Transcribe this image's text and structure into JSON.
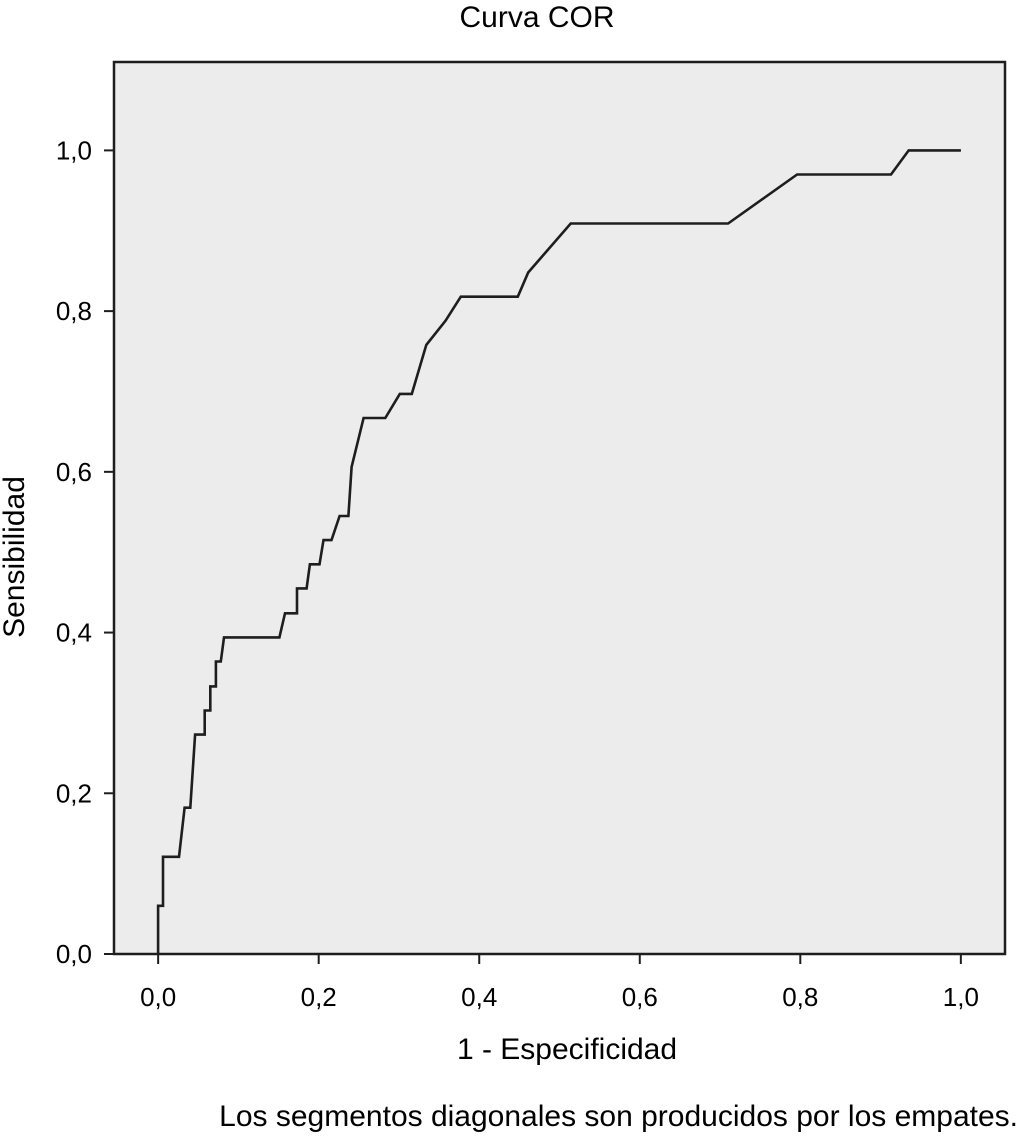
{
  "chart_data": {
    "type": "line",
    "title": "Curva COR",
    "xlabel": "1 - Especificidad",
    "ylabel": "Sensibilidad",
    "footnote": "Los segmentos diagonales son producidos por los empates.",
    "xlim": [
      -0.055,
      1.055
    ],
    "ylim": [
      0.0,
      1.11
    ],
    "x_ticks": [
      0.0,
      0.2,
      0.4,
      0.6,
      0.8,
      1.0
    ],
    "x_tick_labels": [
      "0,0",
      "0,2",
      "0,4",
      "0,6",
      "0,8",
      "1,0"
    ],
    "y_ticks": [
      0.0,
      0.2,
      0.4,
      0.6,
      0.8,
      1.0
    ],
    "y_tick_labels": [
      "0,0",
      "0,2",
      "0,4",
      "0,6",
      "0,8",
      "1,0"
    ],
    "grid": false,
    "colors": {
      "plot_background": "#ececec",
      "line": "#1e1e1e",
      "axes": "#1e1e1e"
    },
    "series": [
      {
        "points": [
          [
            0.0,
            0.0
          ],
          [
            0.0,
            0.06
          ],
          [
            0.006,
            0.06
          ],
          [
            0.006,
            0.121
          ],
          [
            0.026,
            0.121
          ],
          [
            0.033,
            0.182
          ],
          [
            0.04,
            0.182
          ],
          [
            0.046,
            0.273
          ],
          [
            0.058,
            0.273
          ],
          [
            0.058,
            0.303
          ],
          [
            0.065,
            0.303
          ],
          [
            0.065,
            0.333
          ],
          [
            0.072,
            0.333
          ],
          [
            0.072,
            0.364
          ],
          [
            0.078,
            0.364
          ],
          [
            0.082,
            0.394
          ],
          [
            0.151,
            0.394
          ],
          [
            0.158,
            0.424
          ],
          [
            0.173,
            0.424
          ],
          [
            0.173,
            0.455
          ],
          [
            0.185,
            0.455
          ],
          [
            0.189,
            0.485
          ],
          [
            0.201,
            0.485
          ],
          [
            0.206,
            0.515
          ],
          [
            0.216,
            0.515
          ],
          [
            0.226,
            0.545
          ],
          [
            0.237,
            0.545
          ],
          [
            0.241,
            0.606
          ],
          [
            0.256,
            0.667
          ],
          [
            0.283,
            0.667
          ],
          [
            0.301,
            0.697
          ],
          [
            0.316,
            0.697
          ],
          [
            0.334,
            0.758
          ],
          [
            0.358,
            0.788
          ],
          [
            0.377,
            0.818
          ],
          [
            0.448,
            0.818
          ],
          [
            0.461,
            0.848
          ],
          [
            0.514,
            0.909
          ],
          [
            0.71,
            0.909
          ],
          [
            0.796,
            0.97
          ],
          [
            0.913,
            0.97
          ],
          [
            0.935,
            1.0
          ],
          [
            1.0,
            1.0
          ]
        ]
      }
    ]
  }
}
